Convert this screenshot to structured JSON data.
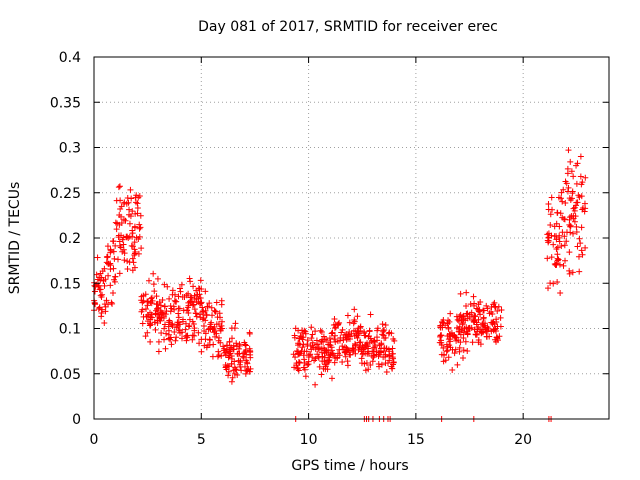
{
  "chart_data": {
    "type": "scatter",
    "title": "Day 081 of 2017, SRMTID for receiver erec",
    "xlabel": "GPS time / hours",
    "ylabel": "SRMTID / TECUs",
    "xlim": [
      0,
      24
    ],
    "ylim": [
      0,
      0.4
    ],
    "xticks": [
      0,
      5,
      10,
      15,
      20
    ],
    "xtick_labels": [
      "0",
      "5",
      "10",
      "15",
      "20"
    ],
    "yticks": [
      0,
      0.05,
      0.1,
      0.15,
      0.2,
      0.25,
      0.3,
      0.35,
      0.4
    ],
    "ytick_labels": [
      "0",
      "0.05",
      "0.1",
      "0.15",
      "0.2",
      "0.25",
      "0.3",
      "0.35",
      "0.4"
    ],
    "grid": true,
    "marker": "+",
    "color": "#ff0000",
    "series": [
      {
        "name": "SRMTID",
        "segments": [
          {
            "t0": 0.0,
            "t1": 0.6,
            "base": 0.14,
            "amp": 0.05
          },
          {
            "t0": 0.6,
            "t1": 1.0,
            "base": 0.17,
            "amp": 0.06
          },
          {
            "t0": 1.0,
            "t1": 2.2,
            "base": 0.21,
            "amp": 0.07
          },
          {
            "t0": 2.2,
            "t1": 3.0,
            "base": 0.12,
            "amp": 0.05
          },
          {
            "t0": 3.0,
            "t1": 4.0,
            "base": 0.11,
            "amp": 0.05
          },
          {
            "t0": 4.0,
            "t1": 5.0,
            "base": 0.12,
            "amp": 0.05
          },
          {
            "t0": 5.0,
            "t1": 6.0,
            "base": 0.1,
            "amp": 0.05
          },
          {
            "t0": 6.0,
            "t1": 7.3,
            "base": 0.07,
            "amp": 0.04
          },
          {
            "t0": 9.3,
            "t1": 11.0,
            "base": 0.075,
            "amp": 0.04
          },
          {
            "t0": 11.0,
            "t1": 12.5,
            "base": 0.085,
            "amp": 0.045
          },
          {
            "t0": 12.5,
            "t1": 14.0,
            "base": 0.08,
            "amp": 0.04
          },
          {
            "t0": 16.1,
            "t1": 17.0,
            "base": 0.09,
            "amp": 0.04
          },
          {
            "t0": 17.0,
            "t1": 19.0,
            "base": 0.105,
            "amp": 0.04
          },
          {
            "t0": 21.1,
            "t1": 21.8,
            "base": 0.19,
            "amp": 0.08
          },
          {
            "t0": 21.8,
            "t1": 22.9,
            "base": 0.23,
            "amp": 0.09
          }
        ],
        "zero_points": [
          9.4,
          12.6,
          12.7,
          12.8,
          13.0,
          13.3,
          13.5,
          13.7,
          13.8,
          16.2,
          17.7,
          21.2,
          21.3
        ]
      }
    ]
  }
}
